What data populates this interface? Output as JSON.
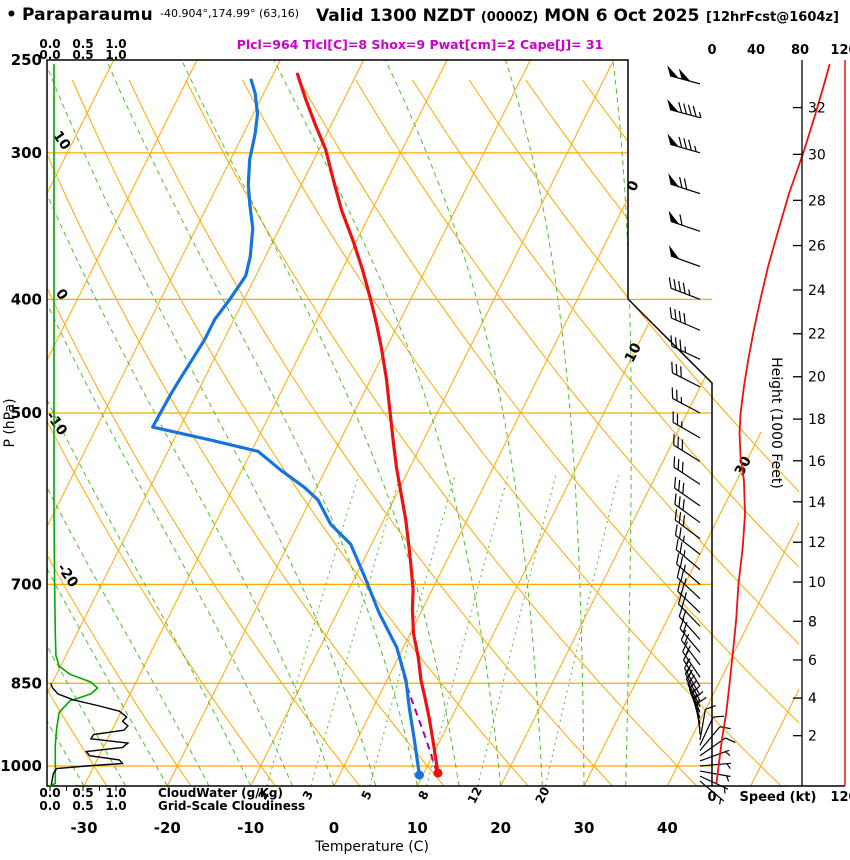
{
  "header": {
    "bullet": "•",
    "station": "Paraparaumu",
    "coords": "-40.904°,174.99° (63,16)",
    "valid_prefix": "Valid 1300 NZDT",
    "valid_z": "(0000Z)",
    "valid_date": "MON 6 Oct 2025",
    "fcst_tag": "[12hrFcst@1604z]",
    "params_line": "Plcl=964 Tlcl[C]=8 Shox=9 Pwat[cm]=2 Cape[J]= 31"
  },
  "colors": {
    "grid_orange": "#ffaa00",
    "moist_green": "#55bb33",
    "cloud_green": "#00a800",
    "temp_red": "#ee1111",
    "dew_blue": "#1874dd",
    "parcel_magenta": "#aa00aa",
    "title_magenta": "#cc00cc",
    "speed_red": "#ee1111",
    "frame_black": "#000000"
  },
  "axes": {
    "pressure_label": "P (hPa)",
    "pressure_ticks": [
      250,
      300,
      400,
      500,
      700,
      850,
      1000
    ],
    "temp_label": "Temperature (C)",
    "temp_ticks": [
      -30,
      -20,
      -10,
      0,
      10,
      20,
      30,
      40
    ],
    "height_label": "Height (1000 Feet)",
    "height_ticks": [
      2,
      4,
      6,
      8,
      10,
      12,
      14,
      16,
      18,
      20,
      22,
      24,
      26,
      28,
      30,
      32
    ],
    "speed_label": "Speed (kt)",
    "speed_ticks": [
      0,
      40,
      80,
      120
    ],
    "cloud_scale_ticks": [
      "0.0",
      "0.5",
      "1.0"
    ],
    "cloudwater_label": "CloudWater (g/Kg)",
    "cloudiness_label": "Grid-Scale Cloudiness",
    "mixing_ratio_values": [
      2,
      3,
      5,
      8,
      12,
      20
    ],
    "dry_adiabat_labels": [
      10,
      0,
      -10,
      -20
    ],
    "isotherm_labels": [
      0,
      10,
      30
    ]
  },
  "chart_data": {
    "type": "line",
    "subtype": "skew-t-log-p-sounding",
    "xlabel": "Temperature (C)",
    "ylabel": "P (hPa)",
    "pressure_range": [
      250,
      1040
    ],
    "temp_axis_range": [
      -35,
      45
    ],
    "temperature_profile": [
      [
        1014,
        11.7
      ],
      [
        962,
        9.6
      ],
      [
        909,
        7.3
      ],
      [
        874,
        5.6
      ],
      [
        845,
        4.1
      ],
      [
        808,
        2.4
      ],
      [
        771,
        0.4
      ],
      [
        735,
        -1.2
      ],
      [
        707,
        -2.3
      ],
      [
        667,
        -4.4
      ],
      [
        641,
        -5.9
      ],
      [
        616,
        -7.4
      ],
      [
        587,
        -9.4
      ],
      [
        558,
        -11.5
      ],
      [
        531,
        -13.4
      ],
      [
        506,
        -15.2
      ],
      [
        468,
        -18.1
      ],
      [
        441,
        -20.5
      ],
      [
        420,
        -22.6
      ],
      [
        400,
        -24.8
      ],
      [
        377,
        -27.6
      ],
      [
        356,
        -30.5
      ],
      [
        336,
        -33.6
      ],
      [
        316,
        -36.5
      ],
      [
        298,
        -39.2
      ],
      [
        284,
        -41.9
      ],
      [
        270,
        -44.6
      ],
      [
        257,
        -47.1
      ]
    ],
    "dewpoint_profile": [
      [
        1018,
        9.6
      ],
      [
        953,
        7.0
      ],
      [
        891,
        4.3
      ],
      [
        845,
        2.3
      ],
      [
        792,
        -0.8
      ],
      [
        740,
        -5.0
      ],
      [
        693,
        -8.6
      ],
      [
        647,
        -12.5
      ],
      [
        622,
        -16.1
      ],
      [
        593,
        -19.1
      ],
      [
        579,
        -21.4
      ],
      [
        559,
        -25.4
      ],
      [
        539,
        -29.2
      ],
      [
        527,
        -35.7
      ],
      [
        514,
        -43.3
      ],
      [
        482,
        -43.1
      ],
      [
        468,
        -42.9
      ],
      [
        433,
        -42.3
      ],
      [
        416,
        -42.3
      ],
      [
        400,
        -41.7
      ],
      [
        382,
        -41.2
      ],
      [
        368,
        -41.8
      ],
      [
        348,
        -43.2
      ],
      [
        332,
        -45.0
      ],
      [
        319,
        -46.4
      ],
      [
        304,
        -47.7
      ],
      [
        289,
        -48.6
      ],
      [
        278,
        -49.5
      ],
      [
        267,
        -51.0
      ],
      [
        260,
        -52.3
      ]
    ],
    "parcel_profile": [
      [
        1012,
        11.5
      ],
      [
        948,
        8.2
      ],
      [
        884,
        4.5
      ],
      [
        849,
        2.4
      ],
      [
        808,
        0.1
      ]
    ],
    "wind_barbs": [
      [
        1030,
        130,
        4
      ],
      [
        1020,
        115,
        5
      ],
      [
        1010,
        100,
        5
      ],
      [
        1000,
        85,
        6
      ],
      [
        990,
        70,
        7
      ],
      [
        980,
        55,
        8
      ],
      [
        970,
        40,
        9
      ],
      [
        960,
        25,
        10
      ],
      [
        950,
        10,
        11
      ],
      [
        940,
        355,
        12
      ],
      [
        930,
        350,
        13
      ],
      [
        920,
        345,
        13
      ],
      [
        910,
        340,
        14
      ],
      [
        900,
        337,
        15
      ],
      [
        890,
        334,
        15
      ],
      [
        880,
        332,
        16
      ],
      [
        870,
        330,
        16
      ],
      [
        855,
        328,
        17
      ],
      [
        840,
        326,
        18
      ],
      [
        820,
        323,
        19
      ],
      [
        800,
        320,
        20
      ],
      [
        780,
        318,
        21
      ],
      [
        760,
        316,
        22
      ],
      [
        740,
        314,
        23
      ],
      [
        720,
        313,
        24
      ],
      [
        700,
        311,
        25
      ],
      [
        680,
        310,
        26
      ],
      [
        660,
        308,
        27
      ],
      [
        640,
        307,
        28
      ],
      [
        620,
        306,
        29
      ],
      [
        600,
        305,
        30
      ],
      [
        575,
        303,
        30
      ],
      [
        550,
        302,
        29
      ],
      [
        525,
        300,
        27
      ],
      [
        500,
        298,
        26
      ],
      [
        475,
        297,
        29
      ],
      [
        450,
        295,
        33
      ],
      [
        425,
        293,
        38
      ],
      [
        400,
        291,
        44
      ],
      [
        375,
        290,
        51
      ],
      [
        350,
        289,
        60
      ],
      [
        325,
        288,
        70
      ],
      [
        300,
        286,
        83
      ],
      [
        280,
        285,
        93
      ],
      [
        262,
        285,
        102
      ]
    ],
    "wind_speed_curve": [
      [
        1035,
        4
      ],
      [
        1000,
        6
      ],
      [
        950,
        9
      ],
      [
        900,
        13
      ],
      [
        850,
        16
      ],
      [
        800,
        19
      ],
      [
        750,
        22
      ],
      [
        700,
        24
      ],
      [
        650,
        28
      ],
      [
        610,
        30
      ],
      [
        570,
        29
      ],
      [
        545,
        26
      ],
      [
        520,
        25
      ],
      [
        500,
        26
      ],
      [
        475,
        29
      ],
      [
        450,
        33
      ],
      [
        425,
        38
      ],
      [
        400,
        44
      ],
      [
        375,
        51
      ],
      [
        350,
        60
      ],
      [
        325,
        70
      ],
      [
        300,
        83
      ],
      [
        280,
        93
      ],
      [
        262,
        102
      ],
      [
        252,
        107
      ]
    ],
    "cloud_water": [
      [
        1040,
        0.0
      ],
      [
        1035,
        0.08
      ],
      [
        1000,
        0.08
      ],
      [
        960,
        0.08
      ],
      [
        930,
        0.1
      ],
      [
        900,
        0.14
      ],
      [
        880,
        0.3
      ],
      [
        868,
        0.62
      ],
      [
        858,
        0.72
      ],
      [
        848,
        0.62
      ],
      [
        835,
        0.3
      ],
      [
        822,
        0.14
      ],
      [
        805,
        0.09
      ],
      [
        770,
        0.08
      ],
      [
        700,
        0.07
      ],
      [
        600,
        0.06
      ],
      [
        500,
        0.06
      ],
      [
        400,
        0.06
      ],
      [
        300,
        0.06
      ],
      [
        252,
        0.06
      ]
    ],
    "grid_scale_cloudiness": [
      [
        1038,
        0.02
      ],
      [
        1015,
        0.05
      ],
      [
        1005,
        0.1
      ],
      [
        1000,
        0.55
      ],
      [
        995,
        1.1
      ],
      [
        988,
        1.05
      ],
      [
        980,
        0.6
      ],
      [
        972,
        0.55
      ],
      [
        964,
        1.1
      ],
      [
        956,
        1.18
      ],
      [
        948,
        0.62
      ],
      [
        940,
        0.66
      ],
      [
        932,
        1.12
      ],
      [
        924,
        1.18
      ],
      [
        916,
        1.1
      ],
      [
        908,
        1.16
      ],
      [
        898,
        1.05
      ],
      [
        888,
        0.72
      ],
      [
        878,
        0.35
      ],
      [
        868,
        0.12
      ],
      [
        858,
        0.04
      ],
      [
        850,
        0.01
      ]
    ]
  }
}
